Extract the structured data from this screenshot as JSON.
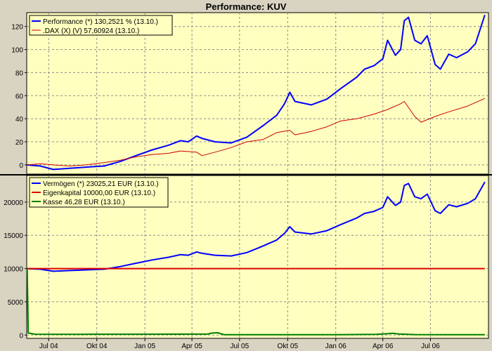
{
  "chart_data": [
    {
      "type": "line",
      "title": "Performance: KUV",
      "ylim": [
        -8,
        132
      ],
      "yticks": [
        0,
        20,
        40,
        60,
        80,
        100,
        120
      ],
      "grid": true,
      "legend_position": "top-left",
      "x_tick_labels": [
        "Jul 04",
        "Okt 04",
        "Jan 05",
        "Apr 05",
        "Jul 05",
        "Okt 05",
        "Jan 06",
        "Apr 06",
        "Jul 06"
      ],
      "x_tick_dates": [
        "2004-07-01",
        "2004-10-01",
        "2005-01-01",
        "2005-04-01",
        "2005-07-01",
        "2005-10-01",
        "2006-01-01",
        "2006-04-01",
        "2006-07-01"
      ],
      "x_range": [
        "2004-05-20",
        "2006-10-20"
      ],
      "series": [
        {
          "name": "Performance (*) 130,2521 % (13.10.)",
          "color": "#0000ff",
          "x": [
            "2004-05-20",
            "2004-06-15",
            "2004-07-10",
            "2004-08-10",
            "2004-09-10",
            "2004-10-15",
            "2004-11-15",
            "2004-12-15",
            "2005-01-15",
            "2005-02-15",
            "2005-03-10",
            "2005-03-25",
            "2005-04-10",
            "2005-04-20",
            "2005-05-15",
            "2005-06-15",
            "2005-07-15",
            "2005-08-15",
            "2005-09-10",
            "2005-09-25",
            "2005-10-05",
            "2005-10-15",
            "2005-11-15",
            "2005-12-15",
            "2006-01-10",
            "2006-02-10",
            "2006-02-25",
            "2006-03-15",
            "2006-04-01",
            "2006-04-10",
            "2006-04-25",
            "2006-05-05",
            "2006-05-12",
            "2006-05-20",
            "2006-06-01",
            "2006-06-13",
            "2006-06-25",
            "2006-07-10",
            "2006-07-20",
            "2006-08-05",
            "2006-08-20",
            "2006-09-10",
            "2006-09-25",
            "2006-10-13"
          ],
          "values": [
            0,
            -1,
            -4,
            -3,
            -2,
            -1,
            3,
            8,
            13,
            17,
            21,
            20,
            25,
            23,
            20,
            19,
            24,
            34,
            43,
            53,
            63,
            55,
            52,
            57,
            66,
            76,
            83,
            86,
            92,
            108,
            95,
            100,
            125,
            128,
            108,
            105,
            112,
            87,
            83,
            96,
            93,
            98,
            105,
            130
          ]
        },
        {
          "name": ".DAX (X) (V) 57,60924 (13.10.)",
          "color": "#cc0000",
          "x": [
            "2004-05-20",
            "2004-06-15",
            "2004-07-10",
            "2004-08-10",
            "2004-09-10",
            "2004-10-15",
            "2004-11-15",
            "2004-12-15",
            "2005-01-15",
            "2005-02-15",
            "2005-03-10",
            "2005-04-10",
            "2005-04-20",
            "2005-05-15",
            "2005-06-15",
            "2005-07-15",
            "2005-08-15",
            "2005-09-10",
            "2005-10-05",
            "2005-10-15",
            "2005-11-15",
            "2005-12-15",
            "2006-01-10",
            "2006-02-10",
            "2006-03-15",
            "2006-04-10",
            "2006-05-05",
            "2006-05-12",
            "2006-06-01",
            "2006-06-13",
            "2006-07-10",
            "2006-08-05",
            "2006-09-10",
            "2006-10-13"
          ],
          "values": [
            0,
            1,
            0,
            -1,
            0,
            2,
            4,
            7,
            9,
            10,
            12,
            11,
            8,
            11,
            15,
            20,
            22,
            28,
            30,
            26,
            29,
            33,
            38,
            40,
            44,
            48,
            53,
            55,
            42,
            37,
            42,
            46,
            51,
            57.6
          ]
        }
      ]
    },
    {
      "type": "line",
      "ylim": [
        -500,
        24000
      ],
      "yticks": [
        0,
        5000,
        10000,
        15000,
        20000
      ],
      "grid": true,
      "legend_position": "top-left",
      "x_tick_labels": [
        "Jul 04",
        "Okt 04",
        "Jan 05",
        "Apr 05",
        "Jul 05",
        "Okt 05",
        "Jan 06",
        "Apr 06",
        "Jul 06"
      ],
      "x_tick_dates": [
        "2004-07-01",
        "2004-10-01",
        "2005-01-01",
        "2005-04-01",
        "2005-07-01",
        "2005-10-01",
        "2006-01-01",
        "2006-04-01",
        "2006-07-01"
      ],
      "x_range": [
        "2004-05-20",
        "2006-10-20"
      ],
      "series": [
        {
          "name": "Vermögen (*) 23025,21 EUR (13.10.)",
          "color": "#0000ff",
          "x": [
            "2004-05-20",
            "2004-06-15",
            "2004-07-10",
            "2004-08-10",
            "2004-09-10",
            "2004-10-15",
            "2004-11-15",
            "2004-12-15",
            "2005-01-15",
            "2005-02-15",
            "2005-03-10",
            "2005-03-25",
            "2005-04-10",
            "2005-04-20",
            "2005-05-15",
            "2005-06-15",
            "2005-07-15",
            "2005-08-15",
            "2005-09-10",
            "2005-09-25",
            "2005-10-05",
            "2005-10-15",
            "2005-11-15",
            "2005-12-15",
            "2006-01-10",
            "2006-02-10",
            "2006-02-25",
            "2006-03-15",
            "2006-04-01",
            "2006-04-10",
            "2006-04-25",
            "2006-05-05",
            "2006-05-12",
            "2006-05-20",
            "2006-06-01",
            "2006-06-13",
            "2006-06-25",
            "2006-07-10",
            "2006-07-20",
            "2006-08-05",
            "2006-08-20",
            "2006-09-10",
            "2006-09-25",
            "2006-10-13"
          ],
          "values": [
            10000,
            9900,
            9600,
            9700,
            9800,
            9900,
            10300,
            10800,
            11300,
            11700,
            12100,
            12000,
            12500,
            12300,
            12000,
            11900,
            12400,
            13400,
            14300,
            15300,
            16300,
            15500,
            15200,
            15700,
            16600,
            17600,
            18300,
            18600,
            19200,
            20800,
            19500,
            20000,
            22500,
            22800,
            20800,
            20500,
            21200,
            18700,
            18300,
            19600,
            19300,
            19800,
            20500,
            23025
          ]
        },
        {
          "name": "Eigenkapital 10000,00 EUR (13.10.)",
          "color": "#dd0000",
          "x": [
            "2004-05-20",
            "2006-10-13"
          ],
          "values": [
            10000,
            10000
          ]
        },
        {
          "name": "Kasse 46,28 EUR (13.10.)",
          "color": "#008000",
          "x": [
            "2004-05-20",
            "2004-05-21",
            "2004-05-23",
            "2004-06-05",
            "2004-09-01",
            "2005-01-01",
            "2005-05-01",
            "2005-05-10",
            "2005-05-20",
            "2005-06-01",
            "2006-01-01",
            "2006-03-20",
            "2006-04-01",
            "2006-04-10",
            "2006-04-20",
            "2006-05-01",
            "2006-06-01",
            "2006-10-13"
          ],
          "values": [
            10000,
            10000,
            300,
            120,
            110,
            120,
            140,
            300,
            350,
            60,
            60,
            100,
            150,
            200,
            260,
            150,
            70,
            46
          ]
        }
      ]
    }
  ]
}
